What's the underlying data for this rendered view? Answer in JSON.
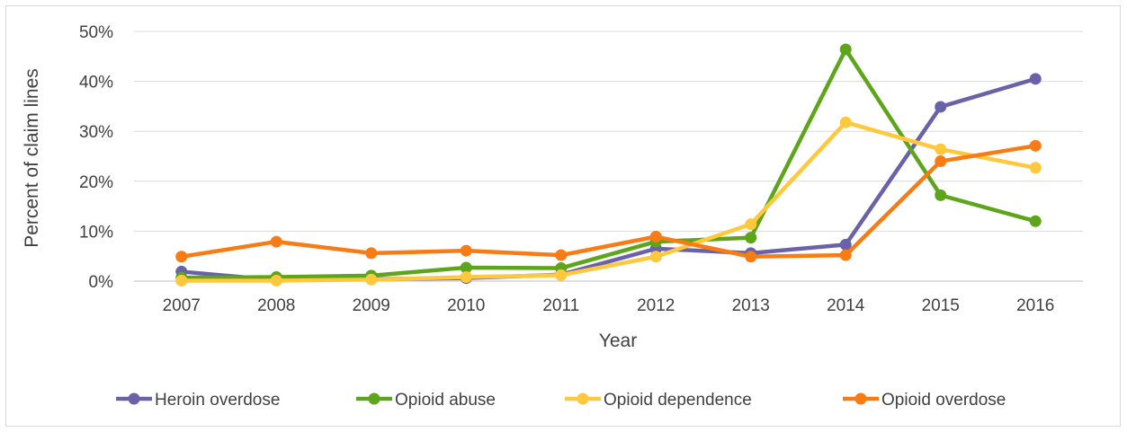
{
  "chart_data": {
    "type": "line",
    "title": "",
    "xlabel": "Year",
    "ylabel": "Percent of claim lines",
    "categories": [
      "2007",
      "2008",
      "2009",
      "2010",
      "2011",
      "2012",
      "2013",
      "2014",
      "2015",
      "2016"
    ],
    "y_ticks": [
      "0%",
      "10%",
      "20%",
      "30%",
      "40%",
      "50%"
    ],
    "ylim": [
      0,
      50
    ],
    "grid": "horizontal",
    "legend_position": "bottom",
    "series": [
      {
        "name": "Heroin overdose",
        "color": "#6a62a8",
        "values": [
          1.9,
          0.2,
          0.4,
          0.6,
          1.3,
          6.5,
          5.6,
          7.3,
          34.9,
          40.5
        ]
      },
      {
        "name": "Opioid abuse",
        "color": "#5ea51b",
        "values": [
          0.7,
          0.8,
          1.1,
          2.7,
          2.6,
          7.9,
          8.7,
          46.4,
          17.2,
          12.0
        ]
      },
      {
        "name": "Opioid dependence",
        "color": "#ffc83d",
        "values": [
          0.1,
          0.1,
          0.3,
          0.8,
          1.2,
          4.9,
          11.4,
          31.8,
          26.4,
          22.7
        ]
      },
      {
        "name": "Opioid overdose",
        "color": "#f97b14",
        "values": [
          4.9,
          7.9,
          5.6,
          6.1,
          5.2,
          8.9,
          4.9,
          5.2,
          24.0,
          27.1
        ]
      }
    ]
  }
}
